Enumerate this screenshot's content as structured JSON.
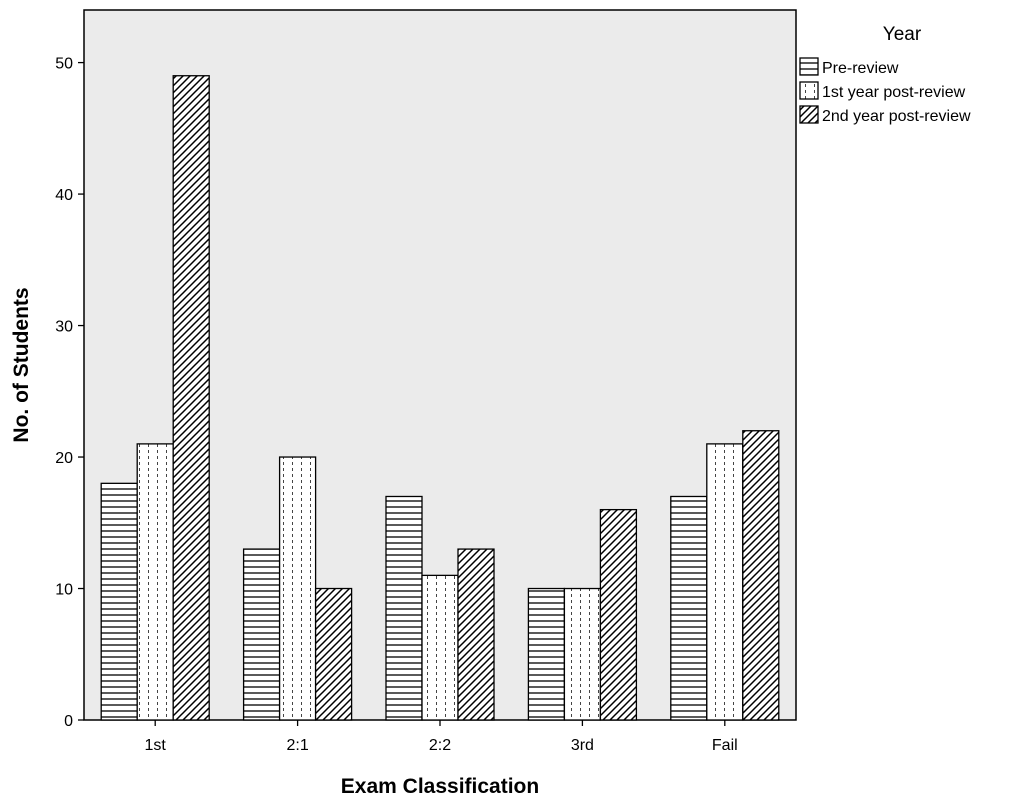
{
  "chart_data": {
    "type": "bar",
    "title": "",
    "xlabel": "Exam Classification",
    "ylabel": "No. of Students",
    "categories": [
      "1st",
      "2:1",
      "2:2",
      "3rd",
      "Fail"
    ],
    "series": [
      {
        "name": "Pre-review",
        "values": [
          18,
          13,
          17,
          10,
          17
        ],
        "pattern": "horizontal-lines"
      },
      {
        "name": "1st year post-review",
        "values": [
          21,
          20,
          11,
          10,
          21
        ],
        "pattern": "dotted-vertical"
      },
      {
        "name": "2nd year post-review",
        "values": [
          49,
          10,
          13,
          16,
          22
        ],
        "pattern": "diagonal-lines"
      }
    ],
    "ylim": [
      0,
      54
    ],
    "yticks": [
      0,
      10,
      20,
      30,
      40,
      50
    ],
    "grid": false,
    "legend": {
      "title": "Year",
      "placement": "right-top-outside"
    },
    "colors": {
      "plot_background": "#ebebeb",
      "bar_fill": "#ffffff",
      "bar_stroke": "#000000"
    }
  }
}
